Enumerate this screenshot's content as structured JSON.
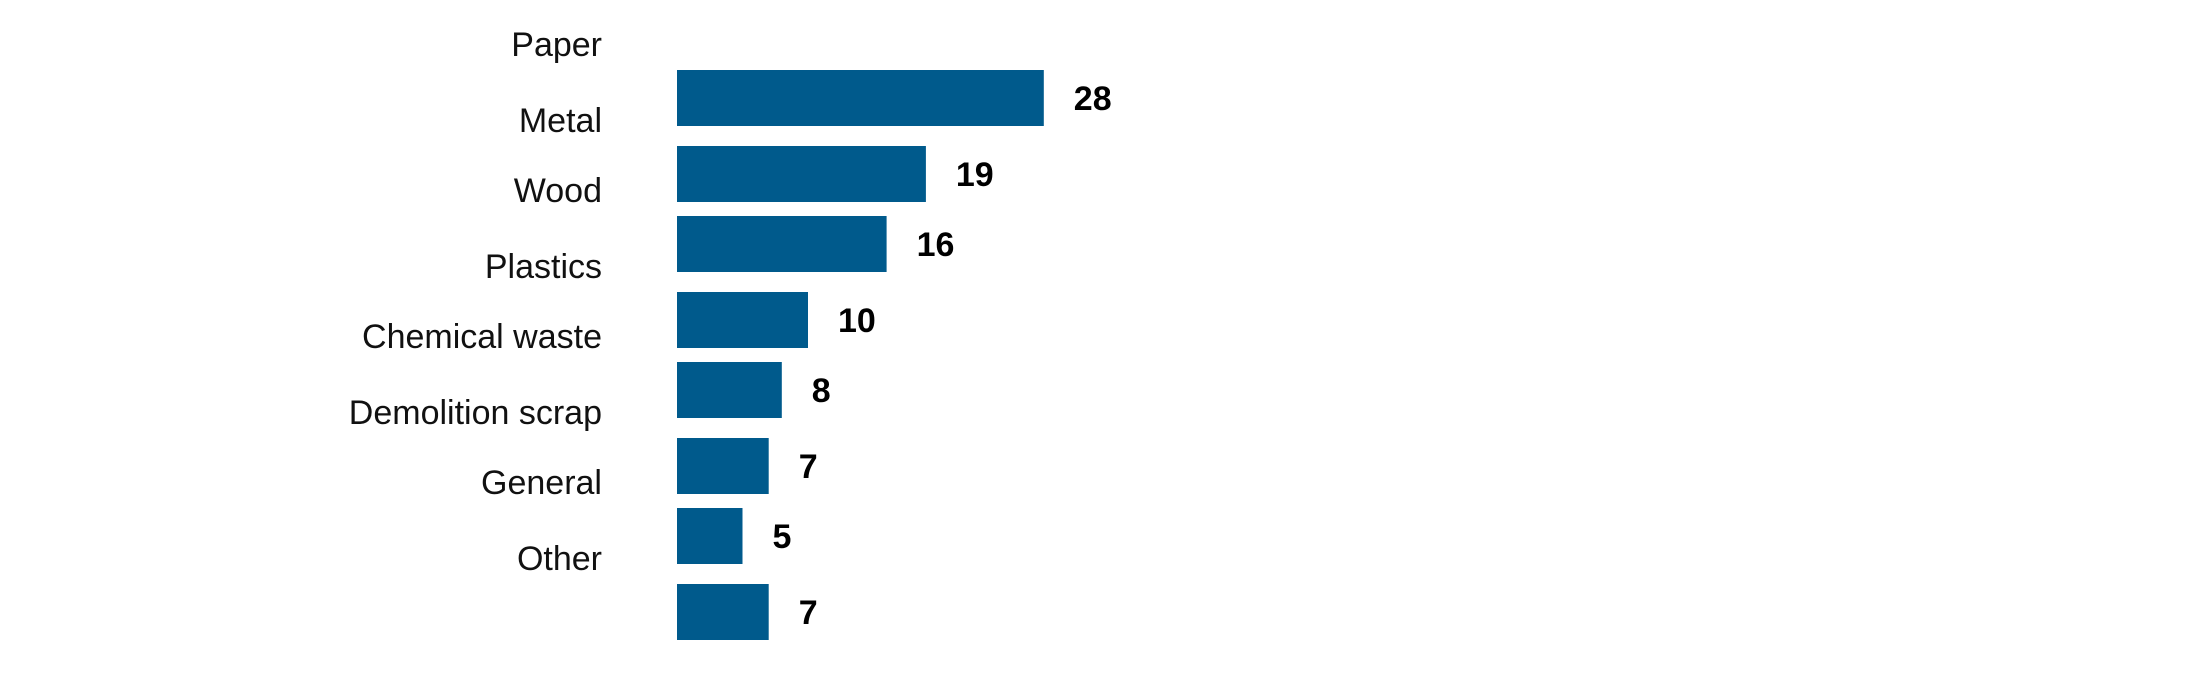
{
  "chart_data": {
    "type": "bar",
    "orientation": "horizontal",
    "categories": [
      "Paper",
      "Metal",
      "Wood",
      "Plastics",
      "Chemical waste",
      "Demolition scrap",
      "General",
      "Other"
    ],
    "values": [
      28,
      19,
      16,
      10,
      8,
      7,
      5,
      7
    ],
    "value_labels": [
      "28",
      "19",
      "16",
      "10",
      "8",
      "7",
      "5",
      "7"
    ],
    "title": "",
    "xlabel": "",
    "ylabel": "",
    "xlim": [
      0,
      28
    ],
    "grid": false,
    "legend": "none",
    "bar_color": "#005a8c"
  }
}
